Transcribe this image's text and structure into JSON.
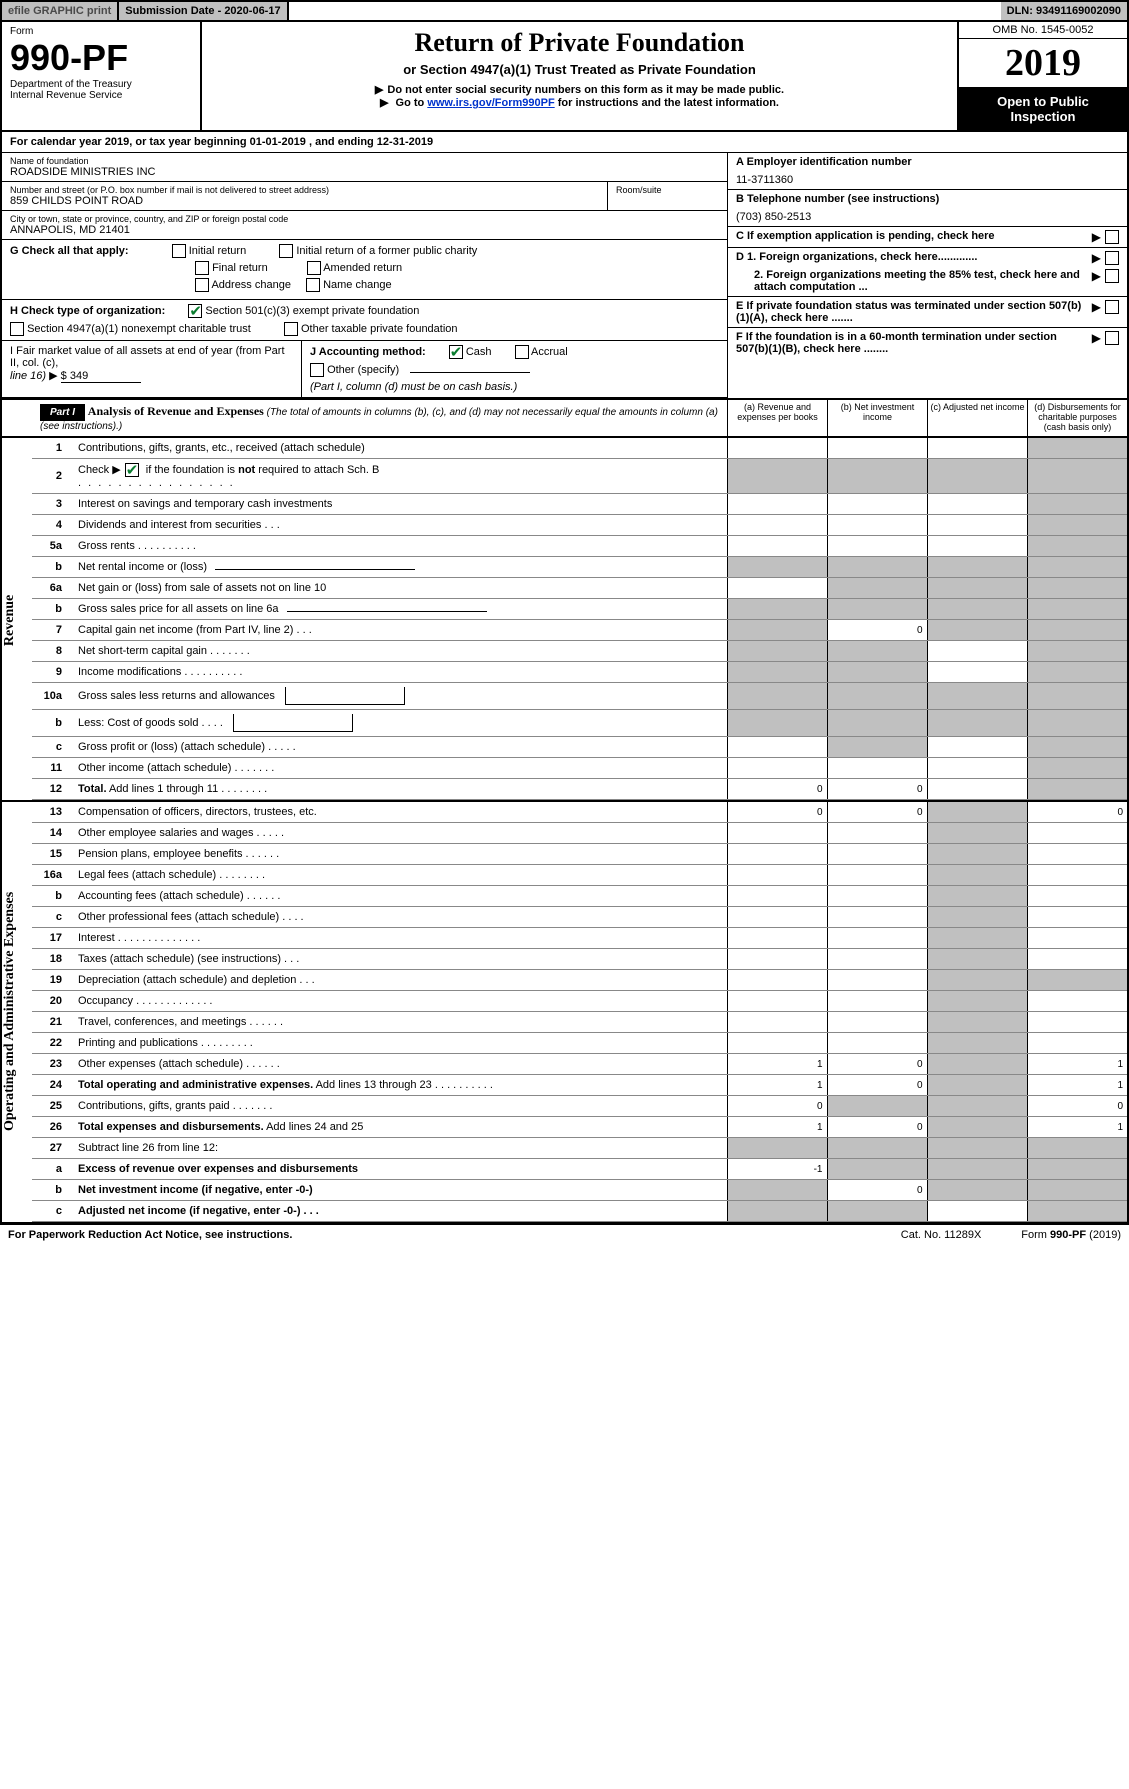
{
  "topbar": {
    "efile": "efile GRAPHIC print",
    "submission": "Submission Date - 2020-06-17",
    "dln": "DLN: 93491169002090"
  },
  "header": {
    "form": "Form",
    "form_number": "990-PF",
    "dept": "Department of the Treasury",
    "irs": "Internal Revenue Service",
    "title": "Return of Private Foundation",
    "subtitle": "or Section 4947(a)(1) Trust Treated as Private Foundation",
    "note1": "Do not enter social security numbers on this form as it may be made public.",
    "note2_prefix": "Go to ",
    "note2_link": "www.irs.gov/Form990PF",
    "note2_suffix": " for instructions and the latest information.",
    "omb": "OMB No. 1545-0052",
    "year": "2019",
    "open": "Open to Public Inspection"
  },
  "cal_year": "For calendar year 2019, or tax year beginning 01-01-2019                , and ending 12-31-2019",
  "info": {
    "name_label": "Name of foundation",
    "name": "ROADSIDE MINISTRIES INC",
    "addr_label": "Number and street (or P.O. box number if mail is not delivered to street address)",
    "addr": "859 CHILDS POINT ROAD",
    "room_label": "Room/suite",
    "city_label": "City or town, state or province, country, and ZIP or foreign postal code",
    "city": "ANNAPOLIS, MD  21401",
    "ein_label": "A Employer identification number",
    "ein": "11-3711360",
    "tel_label": "B Telephone number (see instructions)",
    "tel": "(703) 850-2513",
    "c_label": "C If exemption application is pending, check here",
    "d1": "D 1. Foreign organizations, check here.............",
    "d2": "2. Foreign organizations meeting the 85% test, check here and attach computation ...",
    "e_label": "E  If private foundation status was terminated under section 507(b)(1)(A), check here .......",
    "f_label": "F  If the foundation is in a 60-month termination under section 507(b)(1)(B), check here ........"
  },
  "sec_g": {
    "label": "G Check all that apply:",
    "opts": {
      "initial": "Initial return",
      "initial_public": "Initial return of a former public charity",
      "final": "Final return",
      "amended": "Amended return",
      "addr_change": "Address change",
      "name_change": "Name change"
    }
  },
  "sec_h": {
    "label": "H Check type of organization:",
    "opt1": "Section 501(c)(3) exempt private foundation",
    "opt2": "Section 4947(a)(1) nonexempt charitable trust",
    "opt3": "Other taxable private foundation"
  },
  "sec_i": {
    "fmv_label": "I Fair market value of all assets at end of year (from Part II, col. (c),",
    "fmv_line": "line 16)",
    "fmv_arrow": "▶",
    "fmv_val": "$  349",
    "j_label": "J Accounting method:",
    "cash": "Cash",
    "accrual": "Accrual",
    "other": "Other (specify)",
    "note": "(Part I, column (d) must be on cash basis.)"
  },
  "part1": {
    "label": "Part I",
    "title": "Analysis of Revenue and Expenses",
    "desc": "(The total of amounts in columns (b), (c), and (d) may not necessarily equal the amounts in column (a) (see instructions).)",
    "cols": {
      "a": "(a)   Revenue and expenses per books",
      "b": "(b)  Net investment income",
      "c": "(c)  Adjusted net income",
      "d": "(d)  Disbursements for charitable purposes (cash basis only)"
    }
  },
  "sections": {
    "revenue": "Revenue",
    "expenses": "Operating and Administrative Expenses"
  },
  "revenue_lines": [
    {
      "num": "1",
      "descr": "Contributions, gifts, grants, etc., received (attach schedule)",
      "a": "",
      "d_shade": true
    },
    {
      "num": "2",
      "descr_pre": "Check ▶",
      "descr_post": " if the foundation is not required to attach Sch. B",
      "a_shade": true,
      "b_shade": true,
      "c_shade": true,
      "d_shade": true,
      "checked": true
    },
    {
      "num": "3",
      "descr": "Interest on savings and temporary cash investments",
      "d_shade": true
    },
    {
      "num": "4",
      "descr": "Dividends and interest from securities    .    .    .",
      "d_shade": true
    },
    {
      "num": "5a",
      "descr": "Gross rents    .    .    .    .    .    .    .    .    .    .",
      "d_shade": true
    },
    {
      "num": "b",
      "descr": "Net rental income or (loss)",
      "underline": true,
      "a_shade": true,
      "b_shade": true,
      "c_shade": true,
      "d_shade": true
    },
    {
      "num": "6a",
      "descr": "Net gain or (loss) from sale of assets not on line 10",
      "b_shade": true,
      "c_shade": true,
      "d_shade": true
    },
    {
      "num": "b",
      "descr": "Gross sales price for all assets on line 6a",
      "underline": true,
      "a_shade": true,
      "b_shade": true,
      "c_shade": true,
      "d_shade": true
    },
    {
      "num": "7",
      "descr": "Capital gain net income (from Part IV, line 2)    .    .    .",
      "a_shade": true,
      "b": "0",
      "c_shade": true,
      "d_shade": true
    },
    {
      "num": "8",
      "descr": "Net short-term capital gain    .    .    .    .    .    .    .",
      "a_shade": true,
      "b_shade": true,
      "d_shade": true
    },
    {
      "num": "9",
      "descr": "Income modifications    .    .    .    .    .    .    .    .    .    .",
      "a_shade": true,
      "b_shade": true,
      "d_shade": true
    },
    {
      "num": "10a",
      "descr": "Gross sales less returns and allowances",
      "box": true,
      "a_shade": true,
      "b_shade": true,
      "c_shade": true,
      "d_shade": true
    },
    {
      "num": "b",
      "descr": "Less: Cost of goods sold    .    .    .    .",
      "box": true,
      "a_shade": true,
      "b_shade": true,
      "c_shade": true,
      "d_shade": true
    },
    {
      "num": "c",
      "descr": "Gross profit or (loss) (attach schedule)    .    .    .    .    .",
      "b_shade": true,
      "d_shade": true
    },
    {
      "num": "11",
      "descr": "Other income (attach schedule)    .    .    .    .    .    .    .",
      "d_shade": true
    },
    {
      "num": "12",
      "descr": "Total. Add lines 1 through 11    .    .    .    .    .    .    .    .",
      "bold": true,
      "a": "0",
      "b": "0",
      "d_shade": true
    }
  ],
  "expense_lines": [
    {
      "num": "13",
      "descr": "Compensation of officers, directors, trustees, etc.",
      "a": "0",
      "b": "0",
      "c_shade": true,
      "d": "0"
    },
    {
      "num": "14",
      "descr": "Other employee salaries and wages    .    .    .    .    .",
      "c_shade": true
    },
    {
      "num": "15",
      "descr": "Pension plans, employee benefits    .    .    .    .    .    .",
      "c_shade": true
    },
    {
      "num": "16a",
      "descr": "Legal fees (attach schedule)    .    .    .    .    .    .    .    .",
      "c_shade": true
    },
    {
      "num": "b",
      "descr": "Accounting fees (attach schedule)    .    .    .    .    .    .",
      "c_shade": true
    },
    {
      "num": "c",
      "descr": "Other professional fees (attach schedule)    .    .    .    .",
      "c_shade": true
    },
    {
      "num": "17",
      "descr": "Interest    .    .    .    .    .    .    .    .    .    .    .    .    .    .",
      "c_shade": true
    },
    {
      "num": "18",
      "descr": "Taxes (attach schedule) (see instructions)    .    .    .",
      "c_shade": true
    },
    {
      "num": "19",
      "descr": "Depreciation (attach schedule) and depletion    .    .    .",
      "c_shade": true,
      "d_shade": true
    },
    {
      "num": "20",
      "descr": "Occupancy    .    .    .    .    .    .    .    .    .    .    .    .    .",
      "c_shade": true
    },
    {
      "num": "21",
      "descr": "Travel, conferences, and meetings    .    .    .    .    .    .",
      "c_shade": true
    },
    {
      "num": "22",
      "descr": "Printing and publications    .    .    .    .    .    .    .    .    .",
      "c_shade": true
    },
    {
      "num": "23",
      "descr": "Other expenses (attach schedule)    .    .    .    .    .    .",
      "a": "1",
      "b": "0",
      "c_shade": true,
      "d": "1"
    },
    {
      "num": "24",
      "descr": "Total operating and administrative expenses. Add lines 13 through 23    .    .    .    .    .    .    .    .    .    .",
      "bold": true,
      "a": "1",
      "b": "0",
      "c_shade": true,
      "d": "1"
    },
    {
      "num": "25",
      "descr": "Contributions, gifts, grants paid    .    .    .    .    .    .    .",
      "a": "0",
      "b_shade": true,
      "c_shade": true,
      "d": "0"
    },
    {
      "num": "26",
      "descr": "Total expenses and disbursements. Add lines 24 and 25",
      "bold": true,
      "a": "1",
      "b": "0",
      "c_shade": true,
      "d": "1"
    },
    {
      "num": "27",
      "descr": "Subtract line 26 from line 12:",
      "a_shade": true,
      "b_shade": true,
      "c_shade": true,
      "d_shade": true,
      "no_side": true
    },
    {
      "num": "a",
      "descr": "Excess of revenue over expenses and disbursements",
      "bold": true,
      "a": "-1",
      "b_shade": true,
      "c_shade": true,
      "d_shade": true,
      "no_side": true
    },
    {
      "num": "b",
      "descr": "Net investment income (if negative, enter -0-)",
      "bold": true,
      "a_shade": true,
      "b": "0",
      "c_shade": true,
      "d_shade": true,
      "no_side": true
    },
    {
      "num": "c",
      "descr": "Adjusted net income (if negative, enter -0-)    .    .    .",
      "bold": true,
      "a_shade": true,
      "b_shade": true,
      "d_shade": true,
      "no_side": true
    }
  ],
  "footer": {
    "left": "For Paperwork Reduction Act Notice, see instructions.",
    "mid": "Cat. No. 11289X",
    "right": "Form 990-PF (2019)"
  }
}
